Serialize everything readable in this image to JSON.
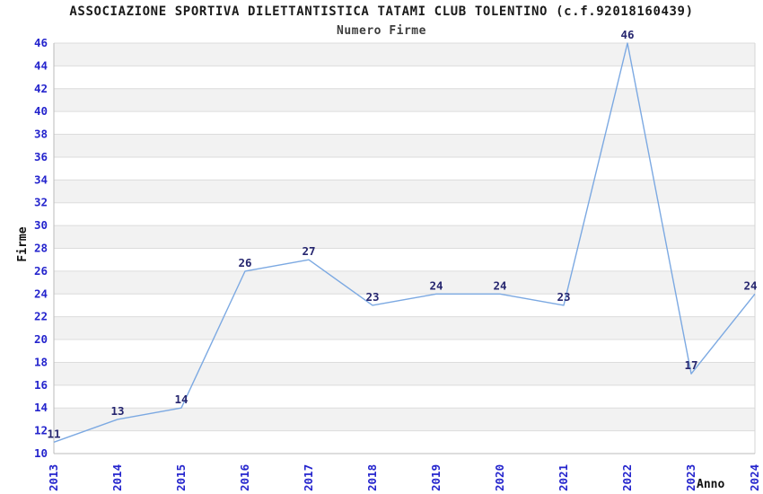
{
  "chart_data": {
    "type": "line",
    "title": "ASSOCIAZIONE SPORTIVA DILETTANTISTICA TATAMI CLUB TOLENTINO (c.f.92018160439)",
    "subtitle": "Numero Firme",
    "xlabel": "Anno",
    "ylabel": "Firme",
    "categories": [
      "2013",
      "2014",
      "2015",
      "2016",
      "2017",
      "2018",
      "2019",
      "2020",
      "2021",
      "2022",
      "2023",
      "2024"
    ],
    "values": [
      11,
      13,
      14,
      26,
      27,
      23,
      24,
      24,
      23,
      46,
      17,
      24
    ],
    "ylim": [
      10,
      46
    ],
    "ytick_step": 2,
    "grid": "horizontal-bands-alternating",
    "legend": "none",
    "colors": {
      "line": "#7CA9E2",
      "data_label": "#26266F",
      "tick_label": "#2424CD",
      "band_fill": "#F2F2F2",
      "gridline": "#DCDCDC",
      "axis_line": "#BBBBBB",
      "plot_border_right": "#D4D4D4",
      "title": "#1A1A1A",
      "subtitle": "#3D3D3D",
      "axis_title": "#111111",
      "background": "#FFFFFF"
    }
  }
}
